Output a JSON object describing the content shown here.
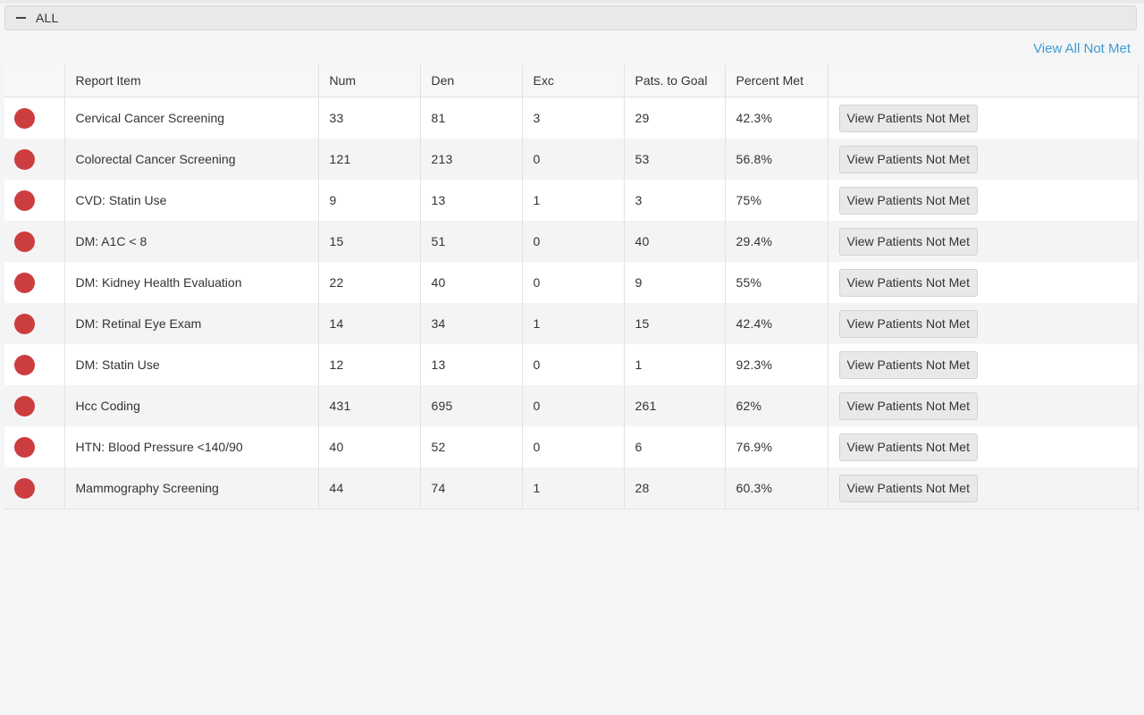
{
  "panel": {
    "title": "ALL",
    "collapse_icon": "minus-icon"
  },
  "actions": {
    "view_all_label": "View All Not Met"
  },
  "table": {
    "columns": [
      "",
      "Report Item",
      "Num",
      "Den",
      "Exc",
      "Pats. to Goal",
      "Percent Met",
      ""
    ],
    "status_color": "#cc3d3f",
    "rows": [
      {
        "item": "Cervical Cancer Screening",
        "num": "33",
        "den": "81",
        "exc": "3",
        "to_goal": "29",
        "pct": "42.3%",
        "action": "View Patients Not Met"
      },
      {
        "item": "Colorectal Cancer Screening",
        "num": "121",
        "den": "213",
        "exc": "0",
        "to_goal": "53",
        "pct": "56.8%",
        "action": "View Patients Not Met"
      },
      {
        "item": "CVD: Statin Use",
        "num": "9",
        "den": "13",
        "exc": "1",
        "to_goal": "3",
        "pct": "75%",
        "action": "View Patients Not Met"
      },
      {
        "item": "DM: A1C < 8",
        "num": "15",
        "den": "51",
        "exc": "0",
        "to_goal": "40",
        "pct": "29.4%",
        "action": "View Patients Not Met"
      },
      {
        "item": "DM: Kidney Health Evaluation",
        "num": "22",
        "den": "40",
        "exc": "0",
        "to_goal": "9",
        "pct": "55%",
        "action": "View Patients Not Met"
      },
      {
        "item": "DM: Retinal Eye Exam",
        "num": "14",
        "den": "34",
        "exc": "1",
        "to_goal": "15",
        "pct": "42.4%",
        "action": "View Patients Not Met"
      },
      {
        "item": "DM: Statin Use",
        "num": "12",
        "den": "13",
        "exc": "0",
        "to_goal": "1",
        "pct": "92.3%",
        "action": "View Patients Not Met"
      },
      {
        "item": "Hcc Coding",
        "num": "431",
        "den": "695",
        "exc": "0",
        "to_goal": "261",
        "pct": "62%",
        "action": "View Patients Not Met"
      },
      {
        "item": "HTN: Blood Pressure <140/90",
        "num": "40",
        "den": "52",
        "exc": "0",
        "to_goal": "6",
        "pct": "76.9%",
        "action": "View Patients Not Met"
      },
      {
        "item": "Mammography Screening",
        "num": "44",
        "den": "74",
        "exc": "1",
        "to_goal": "28",
        "pct": "60.3%",
        "action": "View Patients Not Met"
      }
    ]
  }
}
